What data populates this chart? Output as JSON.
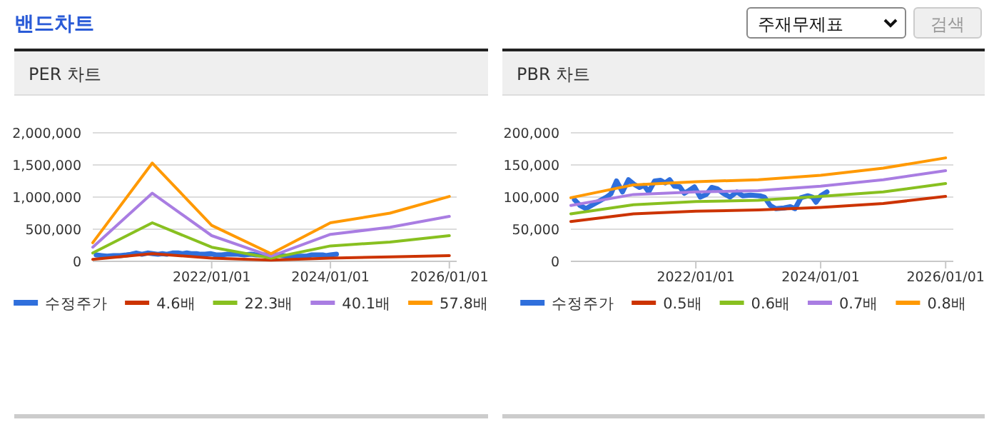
{
  "chart_data": [
    {
      "type": "other",
      "title": "밴드차트",
      "annotations": [
        "주재무제표",
        "검색"
      ]
    },
    {
      "type": "line",
      "title": "PER 차트",
      "xlim": [
        "2020-01-01",
        "2026-02-15"
      ],
      "xticks": [
        {
          "value": "2022-01-01",
          "label": "2022/01/01"
        },
        {
          "value": "2024-01-01",
          "label": "2024/01/01"
        },
        {
          "value": "2026-01-01",
          "label": "2026/01/01"
        }
      ],
      "ylim": [
        0,
        2000000
      ],
      "yticks": [
        {
          "value": 0,
          "label": "0"
        },
        {
          "value": 500000,
          "label": "500,000"
        },
        {
          "value": 1000000,
          "label": "1,000,000"
        },
        {
          "value": 1500000,
          "label": "1,500,000"
        },
        {
          "value": 2000000,
          "label": "2,000,000"
        }
      ],
      "grid": "y",
      "legend": "bottom",
      "series": [
        {
          "name": "수정주가",
          "color": "#2f6fdc",
          "x": [
            "2020-01-22",
            "2020-02-23",
            "2020-03-29",
            "2020-05-08",
            "2020-06-17",
            "2020-07-27",
            "2020-08-22",
            "2020-09-24",
            "2020-10-29",
            "2020-12-03",
            "2021-01-04",
            "2021-02-05",
            "2021-03-04",
            "2021-03-31",
            "2021-05-05",
            "2021-06-09",
            "2021-07-06",
            "2021-08-01",
            "2021-08-28",
            "2021-09-29",
            "2021-10-25",
            "2021-11-21",
            "2021-12-24",
            "2022-01-27",
            "2022-03-03",
            "2022-04-04",
            "2022-05-06",
            "2022-06-10",
            "2022-07-20",
            "2022-08-29",
            "2022-10-03",
            "2022-11-17",
            "2023-01-10",
            "2023-02-06",
            "2023-03-12",
            "2023-04-13",
            "2023-06-01",
            "2023-07-08",
            "2023-08-04",
            "2023-09-08",
            "2023-10-18",
            "2023-11-14",
            "2023-12-05",
            "2024-01-01",
            "2024-02-07"
          ],
          "values": [
            100000,
            90000,
            80000,
            90000,
            90000,
            100000,
            110000,
            130000,
            110000,
            130000,
            120000,
            110000,
            120000,
            110000,
            130000,
            130000,
            120000,
            130000,
            120000,
            120000,
            110000,
            110000,
            120000,
            100000,
            100000,
            110000,
            110000,
            110000,
            100000,
            110000,
            100000,
            100000,
            100000,
            100000,
            90000,
            80000,
            80000,
            80000,
            80000,
            100000,
            100000,
            100000,
            90000,
            100000,
            110000
          ]
        },
        {
          "name": "4.6배",
          "color": "#cc3300",
          "x": [
            "2020-01-01",
            "2021-01-01",
            "2022-01-01",
            "2023-01-01",
            "2024-01-01",
            "2025-01-01",
            "2026-01-01"
          ],
          "values": [
            30000,
            120000,
            50000,
            20000,
            50000,
            70000,
            90000
          ]
        },
        {
          "name": "22.3배",
          "color": "#88c020",
          "x": [
            "2020-01-01",
            "2021-01-01",
            "2022-01-01",
            "2023-01-01",
            "2024-01-01",
            "2025-01-01",
            "2026-01-01"
          ],
          "values": [
            130000,
            600000,
            220000,
            50000,
            240000,
            300000,
            400000
          ]
        },
        {
          "name": "40.1배",
          "color": "#a97de2",
          "x": [
            "2020-01-01",
            "2021-01-01",
            "2022-01-01",
            "2023-01-01",
            "2024-01-01",
            "2025-01-01",
            "2026-01-01"
          ],
          "values": [
            220000,
            1060000,
            400000,
            80000,
            420000,
            530000,
            700000
          ]
        },
        {
          "name": "57.8배",
          "color": "#ff9900",
          "x": [
            "2020-01-01",
            "2021-01-01",
            "2022-01-01",
            "2023-01-01",
            "2024-01-01",
            "2025-01-01",
            "2026-01-01"
          ],
          "values": [
            290000,
            1530000,
            560000,
            120000,
            600000,
            750000,
            1010000
          ]
        }
      ]
    },
    {
      "type": "line",
      "title": "PBR 차트",
      "xlim": [
        "2020-01-01",
        "2026-02-15"
      ],
      "xticks": [
        {
          "value": "2022-01-01",
          "label": "2022/01/01"
        },
        {
          "value": "2024-01-01",
          "label": "2024/01/01"
        },
        {
          "value": "2026-01-01",
          "label": "2026/01/01"
        }
      ],
      "ylim": [
        0,
        200000
      ],
      "yticks": [
        {
          "value": 0,
          "label": "0"
        },
        {
          "value": 50000,
          "label": "50,000"
        },
        {
          "value": 100000,
          "label": "100,000"
        },
        {
          "value": 150000,
          "label": "150,000"
        },
        {
          "value": 200000,
          "label": "200,000"
        }
      ],
      "grid": "y",
      "legend": "bottom",
      "series": [
        {
          "name": "수정주가",
          "color": "#2f6fdc",
          "x": [
            "2020-01-22",
            "2020-02-23",
            "2020-03-29",
            "2020-05-08",
            "2020-06-17",
            "2020-07-27",
            "2020-08-22",
            "2020-09-24",
            "2020-10-29",
            "2020-12-03",
            "2021-01-04",
            "2021-02-05",
            "2021-03-04",
            "2021-03-31",
            "2021-05-05",
            "2021-06-09",
            "2021-07-06",
            "2021-08-01",
            "2021-08-28",
            "2021-09-29",
            "2021-10-25",
            "2021-11-21",
            "2021-12-24",
            "2022-01-27",
            "2022-03-03",
            "2022-04-04",
            "2022-05-06",
            "2022-06-10",
            "2022-07-20",
            "2022-08-29",
            "2022-10-03",
            "2022-11-17",
            "2023-01-10",
            "2023-02-06",
            "2023-03-12",
            "2023-04-13",
            "2023-06-01",
            "2023-07-08",
            "2023-08-04",
            "2023-09-08",
            "2023-10-18",
            "2023-11-14",
            "2023-12-05",
            "2024-01-01",
            "2024-02-07"
          ],
          "values": [
            96000,
            87000,
            82000,
            88000,
            94000,
            100000,
            105000,
            125000,
            108000,
            127000,
            120000,
            115000,
            118000,
            108000,
            125000,
            126000,
            122000,
            127000,
            117000,
            116000,
            106000,
            110000,
            116000,
            100000,
            104000,
            115000,
            113000,
            106000,
            100000,
            108000,
            102000,
            103000,
            102000,
            100000,
            87000,
            82000,
            83000,
            85000,
            82000,
            99000,
            102000,
            100000,
            92000,
            102000,
            108000
          ]
        },
        {
          "name": "0.5배",
          "color": "#cc3300",
          "x": [
            "2020-01-01",
            "2021-01-01",
            "2022-01-01",
            "2023-01-01",
            "2024-01-01",
            "2025-01-01",
            "2026-01-01"
          ],
          "values": [
            62000,
            74000,
            78000,
            80000,
            84000,
            90000,
            101000
          ]
        },
        {
          "name": "0.6배",
          "color": "#88c020",
          "x": [
            "2020-01-01",
            "2021-01-01",
            "2022-01-01",
            "2023-01-01",
            "2024-01-01",
            "2025-01-01",
            "2026-01-01"
          ],
          "values": [
            74000,
            88000,
            93000,
            95000,
            101000,
            108000,
            121000
          ]
        },
        {
          "name": "0.7배",
          "color": "#a97de2",
          "x": [
            "2020-01-01",
            "2021-01-01",
            "2022-01-01",
            "2023-01-01",
            "2024-01-01",
            "2025-01-01",
            "2026-01-01"
          ],
          "values": [
            87000,
            104000,
            108000,
            110000,
            117000,
            127000,
            141000
          ]
        },
        {
          "name": "0.8배",
          "color": "#ff9900",
          "x": [
            "2020-01-01",
            "2021-01-01",
            "2022-01-01",
            "2023-01-01",
            "2024-01-01",
            "2025-01-01",
            "2026-01-01"
          ],
          "values": [
            99000,
            119000,
            124000,
            127000,
            134000,
            145000,
            161000
          ]
        }
      ]
    }
  ]
}
